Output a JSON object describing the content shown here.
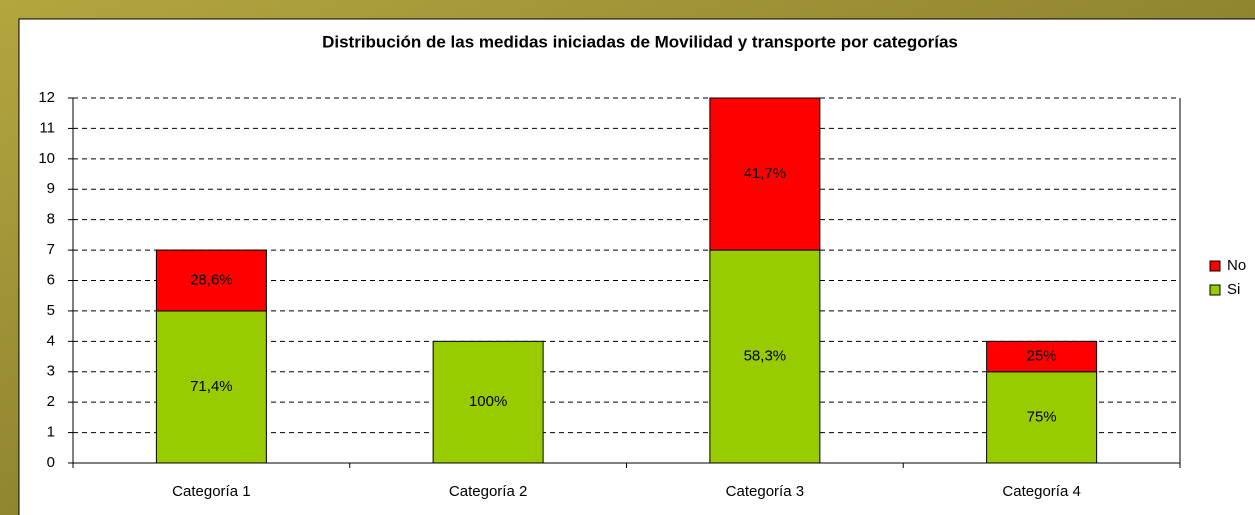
{
  "chart_data": {
    "type": "stacked_bar",
    "title": "Distribución de las medidas iniciadas de Movilidad y transporte por categorías",
    "categories": [
      "Categoría 1",
      "Categoría 2",
      "Categoría 3",
      "Categoría 4"
    ],
    "series": [
      {
        "name": "Si",
        "color": "#99cc00",
        "values": [
          5,
          4,
          7,
          3
        ],
        "percentages": [
          71.4,
          100,
          58.3,
          75
        ],
        "percentage_labels": [
          "71,4%",
          "100%",
          "58,3%",
          "75%"
        ]
      },
      {
        "name": "No",
        "color": "#ff0000",
        "values": [
          2,
          0,
          5,
          1
        ],
        "percentages": [
          28.6,
          null,
          41.7,
          25
        ],
        "percentage_labels": [
          "28,6%",
          null,
          "41,7%",
          "25%"
        ]
      }
    ],
    "ylim": [
      0,
      12
    ],
    "yticks": [
      0,
      1,
      2,
      3,
      4,
      5,
      6,
      7,
      8,
      9,
      10,
      11,
      12
    ],
    "grid": true,
    "legend": "right"
  }
}
